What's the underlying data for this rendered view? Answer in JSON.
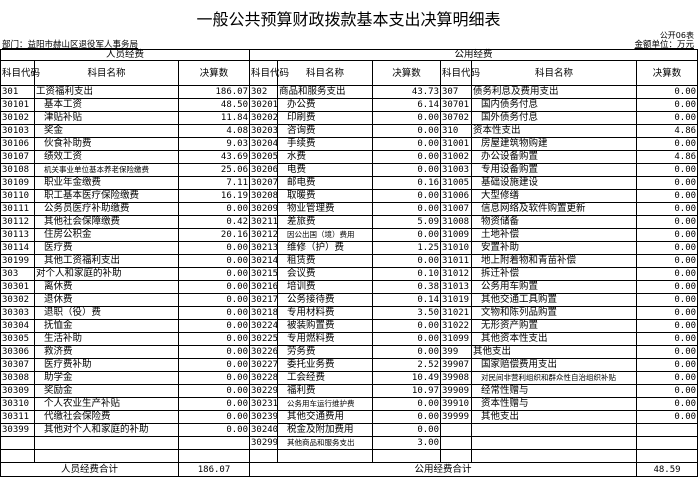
{
  "title": "一般公共预算财政拨款基本支出决算明细表",
  "form_no": "公开06表",
  "department": "部门：益阳市赫山区退役军人事务局",
  "unit": "金额单位：万元",
  "groups": {
    "personnel": "人员经费",
    "public": "公用经费"
  },
  "headers": {
    "code": "科目代码",
    "name": "科目名称",
    "amount": "决算数"
  },
  "personnel_rows": [
    [
      "301",
      "工资福利支出",
      "186.07",
      0
    ],
    [
      "30101",
      "基本工资",
      "48.50",
      1
    ],
    [
      "30102",
      "津贴补贴",
      "11.84",
      1
    ],
    [
      "30103",
      "奖金",
      "4.08",
      1
    ],
    [
      "30106",
      "伙食补助费",
      "9.03",
      1
    ],
    [
      "30107",
      "绩效工资",
      "43.69",
      1
    ],
    [
      "30108",
      "机关事业单位基本养老保险缴费",
      "25.06",
      2
    ],
    [
      "30109",
      "职业年金缴费",
      "7.11",
      1
    ],
    [
      "30110",
      "职工基本医疗保险缴费",
      "16.19",
      1
    ],
    [
      "30111",
      "公务员医疗补助缴费",
      "0.00",
      1
    ],
    [
      "30112",
      "其他社会保障缴费",
      "0.42",
      1
    ],
    [
      "30113",
      "住房公积金",
      "20.16",
      1
    ],
    [
      "30114",
      "医疗费",
      "0.00",
      1
    ],
    [
      "30199",
      "其他工资福利支出",
      "0.00",
      1
    ],
    [
      "303",
      "对个人和家庭的补助",
      "0.00",
      0
    ],
    [
      "30301",
      "离休费",
      "0.00",
      1
    ],
    [
      "30302",
      "退休费",
      "0.00",
      1
    ],
    [
      "30303",
      "退职（役）费",
      "0.00",
      1
    ],
    [
      "30304",
      "抚恤金",
      "0.00",
      1
    ],
    [
      "30305",
      "生活补助",
      "0.00",
      1
    ],
    [
      "30306",
      "救济费",
      "0.00",
      1
    ],
    [
      "30307",
      "医疗费补助",
      "0.00",
      1
    ],
    [
      "30308",
      "助学金",
      "0.00",
      1
    ],
    [
      "30309",
      "奖励金",
      "0.00",
      1
    ],
    [
      "30310",
      "个人农业生产补贴",
      "0.00",
      1
    ],
    [
      "30311",
      "代缴社会保险费",
      "0.00",
      1
    ],
    [
      "30399",
      "其他对个人和家庭的补助",
      "0.00",
      1
    ]
  ],
  "public_rows_a": [
    [
      "302",
      "商品和服务支出",
      "43.73",
      0
    ],
    [
      "30201",
      "办公费",
      "6.14",
      1
    ],
    [
      "30202",
      "印刷费",
      "0.00",
      1
    ],
    [
      "30203",
      "咨询费",
      "0.00",
      1
    ],
    [
      "30204",
      "手续费",
      "0.00",
      1
    ],
    [
      "30205",
      "水费",
      "0.00",
      1
    ],
    [
      "30206",
      "电费",
      "0.00",
      1
    ],
    [
      "30207",
      "邮电费",
      "0.16",
      1
    ],
    [
      "30208",
      "取暖费",
      "0.00",
      1
    ],
    [
      "30209",
      "物业管理费",
      "0.00",
      1
    ],
    [
      "30211",
      "差旅费",
      "5.09",
      1
    ],
    [
      "30212",
      "因公出国（境）费用",
      "0.00",
      2
    ],
    [
      "30213",
      "维修（护）费",
      "1.25",
      1
    ],
    [
      "30214",
      "租赁费",
      "0.00",
      1
    ],
    [
      "30215",
      "会议费",
      "0.10",
      1
    ],
    [
      "30216",
      "培训费",
      "0.38",
      1
    ],
    [
      "30217",
      "公务接待费",
      "0.14",
      1
    ],
    [
      "30218",
      "专用材料费",
      "3.50",
      1
    ],
    [
      "30224",
      "被装购置费",
      "0.00",
      1
    ],
    [
      "30225",
      "专用燃料费",
      "0.00",
      1
    ],
    [
      "30226",
      "劳务费",
      "0.00",
      1
    ],
    [
      "30227",
      "委托业务费",
      "2.52",
      1
    ],
    [
      "30228",
      "工会经费",
      "10.49",
      1
    ],
    [
      "30229",
      "福利费",
      "10.97",
      1
    ],
    [
      "30231",
      "公务用车运行维护费",
      "0.00",
      2
    ],
    [
      "30239",
      "其他交通费用",
      "0.00",
      1
    ],
    [
      "30240",
      "税金及附加费用",
      "0.00",
      1
    ],
    [
      "30299",
      "其他商品和服务支出",
      "3.00",
      2
    ]
  ],
  "public_rows_b": [
    [
      "307",
      "债务利息及费用支出",
      "0.00",
      0
    ],
    [
      "30701",
      "国内债务付息",
      "0.00",
      1
    ],
    [
      "30702",
      "国外债务付息",
      "0.00",
      1
    ],
    [
      "310",
      "资本性支出",
      "4.86",
      0
    ],
    [
      "31001",
      "房屋建筑物购建",
      "0.00",
      1
    ],
    [
      "31002",
      "办公设备购置",
      "4.86",
      1
    ],
    [
      "31003",
      "专用设备购置",
      "0.00",
      1
    ],
    [
      "31005",
      "基础设施建设",
      "0.00",
      1
    ],
    [
      "31006",
      "大型修缮",
      "0.00",
      1
    ],
    [
      "31007",
      "信息网络及软件购置更新",
      "0.00",
      1
    ],
    [
      "31008",
      "物资储备",
      "0.00",
      1
    ],
    [
      "31009",
      "土地补偿",
      "0.00",
      1
    ],
    [
      "31010",
      "安置补助",
      "0.00",
      1
    ],
    [
      "31011",
      "地上附着物和青苗补偿",
      "0.00",
      1
    ],
    [
      "31012",
      "拆迁补偿",
      "0.00",
      1
    ],
    [
      "31013",
      "公务用车购置",
      "0.00",
      1
    ],
    [
      "31019",
      "其他交通工具购置",
      "0.00",
      1
    ],
    [
      "31021",
      "文物和陈列品购置",
      "0.00",
      1
    ],
    [
      "31022",
      "无形资产购置",
      "0.00",
      1
    ],
    [
      "31099",
      "其他资本性支出",
      "0.00",
      1
    ],
    [
      "399",
      "其他支出",
      "0.00",
      0
    ],
    [
      "39907",
      "国家赔偿费用支出",
      "0.00",
      1
    ],
    [
      "39908",
      "对民间非营利组织和群众性自治组织补贴",
      "0.00",
      2
    ],
    [
      "39909",
      "经常性赠与",
      "0.00",
      1
    ],
    [
      "39910",
      "资本性赠与",
      "0.00",
      1
    ],
    [
      "39999",
      "其他支出",
      "0.00",
      1
    ]
  ],
  "totals": {
    "personnel_label": "人员经费合计",
    "personnel_value": "186.07",
    "public_label": "公用经费合计",
    "public_value": "48.59"
  }
}
